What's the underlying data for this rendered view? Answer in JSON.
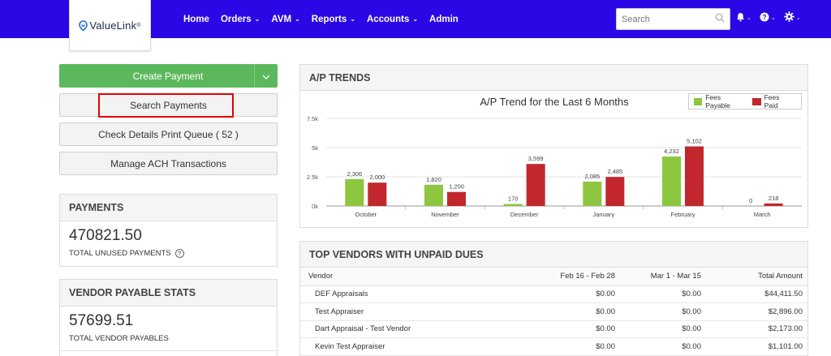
{
  "header": {
    "logo_text": "ValueLink",
    "logo_mark": "®",
    "nav": [
      {
        "label": "Home",
        "dropdown": false
      },
      {
        "label": "Orders",
        "dropdown": true
      },
      {
        "label": "AVM",
        "dropdown": true
      },
      {
        "label": "Reports",
        "dropdown": true
      },
      {
        "label": "Accounts",
        "dropdown": true
      },
      {
        "label": "Admin",
        "dropdown": false
      }
    ],
    "search_placeholder": "Search",
    "icons": [
      "bell-icon",
      "help-icon",
      "gear-icon"
    ],
    "bar_color": "#2b07e6"
  },
  "actions": {
    "create_payment": "Create Payment",
    "search_payments": "Search Payments",
    "check_details": "Check Details Print Queue ( 52 )",
    "manage_ach": "Manage ACH Transactions"
  },
  "payments": {
    "title": "PAYMENTS",
    "value": "470821.50",
    "label": "TOTAL UNUSED PAYMENTS"
  },
  "vendor_stats": {
    "title": "VENDOR PAYABLE STATS",
    "value": "57699.51",
    "label": "TOTAL VENDOR PAYABLES"
  },
  "ap_trends": {
    "title": "A/P TRENDS"
  },
  "chart_data": {
    "type": "bar",
    "title": "A/P Trend for the Last 6 Months",
    "categories": [
      "October",
      "November",
      "December",
      "January",
      "February",
      "March"
    ],
    "series": [
      {
        "name": "Fees Payable",
        "color": "#8dc63f",
        "values": [
          2306,
          1820,
          170,
          2085,
          4232,
          0
        ]
      },
      {
        "name": "Fees Paid",
        "color": "#c1272d",
        "values": [
          2000,
          1200,
          3599,
          2485,
          5102,
          218
        ]
      }
    ],
    "data_labels": [
      [
        "2,306",
        "1,820",
        "170",
        "2,085",
        "4,232",
        "0"
      ],
      [
        "2,000",
        "1,200",
        "3,599",
        "2,485",
        "5,102",
        "218"
      ]
    ],
    "y_ticks": [
      0,
      2500,
      5000,
      7500
    ],
    "y_tick_labels": [
      "0k",
      "2.5k",
      "5k",
      "7.5k"
    ],
    "ylim": [
      0,
      7500
    ],
    "grid": true,
    "legend_position": "top-right"
  },
  "vendors": {
    "title": "TOP VENDORS WITH UNPAID DUES",
    "columns": [
      "Vendor",
      "Feb 16 - Feb 28",
      "Mar 1 - Mar 15",
      "Total Amount"
    ],
    "rows": [
      [
        "DEF Appraisals",
        "$0.00",
        "$0.00",
        "$44,411.50"
      ],
      [
        "Test Appraiser",
        "$0.00",
        "$0.00",
        "$2,896.00"
      ],
      [
        "Dart Appraisal - Test Vendor",
        "$0.00",
        "$0.00",
        "$2,173.00"
      ],
      [
        "Kevin Test Appraiser",
        "$0.00",
        "$0.00",
        "$1,101.00"
      ]
    ]
  }
}
